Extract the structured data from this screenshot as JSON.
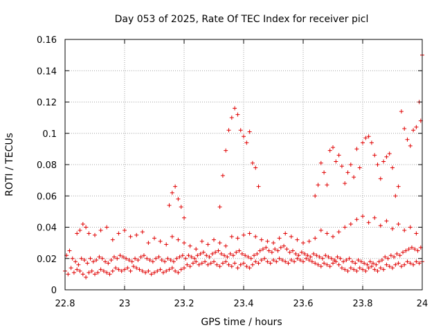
{
  "chart_data": {
    "type": "scatter",
    "title": "Day 053 of 2025, Rate Of TEC Index for receiver picl",
    "xlabel": "GPS time / hours",
    "ylabel": "ROTI / TECUs",
    "xlim": [
      22.8,
      24.0
    ],
    "ylim": [
      0.0,
      0.16
    ],
    "xticks": [
      22.8,
      23.0,
      23.2,
      23.4,
      23.6,
      23.8,
      24.0
    ],
    "xtick_labels": [
      "22.8",
      "23",
      "23.2",
      "23.4",
      "23.6",
      "23.8",
      "24"
    ],
    "yticks": [
      0,
      0.02,
      0.04,
      0.06,
      0.08,
      0.1,
      0.12,
      0.14,
      0.16
    ],
    "ytick_labels": [
      "0",
      "0.02",
      "0.04",
      "0.06",
      "0.08",
      "0.1",
      "0.12",
      "0.14",
      "0.16"
    ],
    "grid": true,
    "marker": "+",
    "series": [
      {
        "name": "ROTI",
        "color": "#e00000",
        "x": [
          22.8,
          22.81,
          22.82,
          22.83,
          22.84,
          22.85,
          22.86,
          22.87,
          22.88,
          22.89,
          22.9,
          22.91,
          22.92,
          22.93,
          22.94,
          22.95,
          22.96,
          22.97,
          22.98,
          22.99,
          23.0,
          23.01,
          23.02,
          23.03,
          23.04,
          23.05,
          23.06,
          23.07,
          23.08,
          23.09,
          23.1,
          23.11,
          23.12,
          23.13,
          23.14,
          23.15,
          23.16,
          23.17,
          23.18,
          23.19,
          23.2,
          23.21,
          23.22,
          23.23,
          23.24,
          23.25,
          23.26,
          23.27,
          23.28,
          23.29,
          23.3,
          23.31,
          23.32,
          23.33,
          23.34,
          23.35,
          23.36,
          23.37,
          23.38,
          23.39,
          23.4,
          23.41,
          23.42,
          23.43,
          23.44,
          23.45,
          23.46,
          23.47,
          23.48,
          23.49,
          23.5,
          23.51,
          23.52,
          23.53,
          23.54,
          23.55,
          23.56,
          23.57,
          23.58,
          23.59,
          23.6,
          23.61,
          23.62,
          23.63,
          23.64,
          23.65,
          23.66,
          23.67,
          23.68,
          23.69,
          23.7,
          23.71,
          23.72,
          23.73,
          23.74,
          23.75,
          23.76,
          23.77,
          23.78,
          23.79,
          23.8,
          23.81,
          23.82,
          23.83,
          23.84,
          23.85,
          23.86,
          23.87,
          23.88,
          23.89,
          23.9,
          23.91,
          23.92,
          23.93,
          23.94,
          23.95,
          23.96,
          23.97,
          23.98,
          23.99,
          24.0,
          22.805,
          22.815,
          22.825,
          22.835,
          22.845,
          22.855,
          22.865,
          22.875,
          22.885,
          22.895,
          22.905,
          22.915,
          22.925,
          22.935,
          22.945,
          22.955,
          22.965,
          22.975,
          22.985,
          22.995,
          23.005,
          23.015,
          23.025,
          23.035,
          23.045,
          23.055,
          23.065,
          23.075,
          23.085,
          23.095,
          23.105,
          23.115,
          23.125,
          23.135,
          23.145,
          23.155,
          23.165,
          23.175,
          23.185,
          23.195,
          23.205,
          23.215,
          23.225,
          23.235,
          23.245,
          23.255,
          23.265,
          23.275,
          23.285,
          23.295,
          23.305,
          23.315,
          23.325,
          23.335,
          23.345,
          23.355,
          23.365,
          23.375,
          23.385,
          23.395,
          23.405,
          23.415,
          23.425,
          23.435,
          23.445,
          23.455,
          23.465,
          23.475,
          23.485,
          23.495,
          23.505,
          23.515,
          23.525,
          23.535,
          23.545,
          23.555,
          23.565,
          23.575,
          23.585,
          23.595,
          23.605,
          23.615,
          23.625,
          23.635,
          23.645,
          23.655,
          23.665,
          23.675,
          23.685,
          23.695,
          23.705,
          23.715,
          23.725,
          23.735,
          23.745,
          23.755,
          23.765,
          23.775,
          23.785,
          23.795,
          23.805,
          23.815,
          23.825,
          23.835,
          23.845,
          23.855,
          23.865,
          23.875,
          23.885,
          23.895,
          23.905,
          23.915,
          23.925,
          23.935,
          23.945,
          23.955,
          23.965,
          23.975,
          23.985,
          23.995,
          22.84,
          22.85,
          22.86,
          22.87,
          22.88,
          22.9,
          22.92,
          22.94,
          22.96,
          22.98,
          23.0,
          23.02,
          23.04,
          23.06,
          23.08,
          23.1,
          23.12,
          23.14,
          23.16,
          23.18,
          23.2,
          23.22,
          23.24,
          23.26,
          23.28,
          23.3,
          23.32,
          23.34,
          23.36,
          23.38,
          23.4,
          23.42,
          23.44,
          23.46,
          23.48,
          23.5,
          23.52,
          23.54,
          23.56,
          23.58,
          23.6,
          23.62,
          23.64,
          23.66,
          23.68,
          23.7,
          23.72,
          23.74,
          23.76,
          23.78,
          23.8,
          23.82,
          23.84,
          23.86,
          23.88,
          23.9,
          23.92,
          23.94,
          23.96,
          23.98,
          23.15,
          23.16,
          23.17,
          23.18,
          23.19,
          23.2,
          23.32,
          23.33,
          23.34,
          23.35,
          23.36,
          23.37,
          23.38,
          23.39,
          23.4,
          23.41,
          23.42,
          23.43,
          23.44,
          23.45,
          23.64,
          23.65,
          23.66,
          23.67,
          23.68,
          23.69,
          23.7,
          23.71,
          23.72,
          23.73,
          23.74,
          23.75,
          23.76,
          23.77,
          23.78,
          23.79,
          23.8,
          23.81,
          23.82,
          23.83,
          23.84,
          23.85,
          23.86,
          23.87,
          23.88,
          23.89,
          23.9,
          23.91,
          23.92,
          23.93,
          23.94,
          23.95,
          23.96,
          23.97,
          23.98,
          23.99,
          23.995,
          24.0
        ],
        "y": [
          0.012,
          0.01,
          0.014,
          0.011,
          0.013,
          0.012,
          0.01,
          0.008,
          0.011,
          0.012,
          0.01,
          0.011,
          0.013,
          0.012,
          0.011,
          0.01,
          0.012,
          0.014,
          0.013,
          0.012,
          0.013,
          0.014,
          0.012,
          0.015,
          0.014,
          0.013,
          0.012,
          0.011,
          0.012,
          0.01,
          0.011,
          0.012,
          0.013,
          0.011,
          0.012,
          0.013,
          0.014,
          0.012,
          0.011,
          0.013,
          0.014,
          0.016,
          0.015,
          0.017,
          0.018,
          0.016,
          0.017,
          0.018,
          0.016,
          0.017,
          0.018,
          0.016,
          0.015,
          0.017,
          0.018,
          0.016,
          0.015,
          0.017,
          0.014,
          0.016,
          0.017,
          0.015,
          0.014,
          0.016,
          0.018,
          0.017,
          0.019,
          0.02,
          0.018,
          0.017,
          0.019,
          0.018,
          0.02,
          0.019,
          0.018,
          0.017,
          0.019,
          0.018,
          0.02,
          0.019,
          0.018,
          0.02,
          0.019,
          0.018,
          0.017,
          0.016,
          0.015,
          0.017,
          0.016,
          0.015,
          0.017,
          0.018,
          0.016,
          0.014,
          0.013,
          0.012,
          0.014,
          0.013,
          0.012,
          0.014,
          0.013,
          0.012,
          0.014,
          0.015,
          0.013,
          0.012,
          0.014,
          0.013,
          0.016,
          0.015,
          0.014,
          0.016,
          0.017,
          0.015,
          0.016,
          0.018,
          0.017,
          0.016,
          0.018,
          0.017,
          0.018,
          0.022,
          0.025,
          0.02,
          0.018,
          0.016,
          0.02,
          0.019,
          0.017,
          0.02,
          0.018,
          0.019,
          0.021,
          0.02,
          0.018,
          0.017,
          0.019,
          0.021,
          0.02,
          0.022,
          0.021,
          0.02,
          0.019,
          0.018,
          0.02,
          0.019,
          0.021,
          0.022,
          0.02,
          0.019,
          0.018,
          0.02,
          0.021,
          0.019,
          0.018,
          0.02,
          0.019,
          0.018,
          0.02,
          0.021,
          0.022,
          0.02,
          0.022,
          0.021,
          0.02,
          0.022,
          0.023,
          0.024,
          0.022,
          0.021,
          0.023,
          0.024,
          0.025,
          0.023,
          0.022,
          0.021,
          0.023,
          0.022,
          0.024,
          0.025,
          0.023,
          0.022,
          0.021,
          0.02,
          0.022,
          0.023,
          0.025,
          0.026,
          0.027,
          0.025,
          0.024,
          0.026,
          0.025,
          0.027,
          0.028,
          0.026,
          0.024,
          0.025,
          0.023,
          0.022,
          0.024,
          0.023,
          0.022,
          0.021,
          0.023,
          0.022,
          0.021,
          0.02,
          0.022,
          0.021,
          0.02,
          0.019,
          0.021,
          0.02,
          0.018,
          0.019,
          0.02,
          0.018,
          0.017,
          0.019,
          0.018,
          0.017,
          0.016,
          0.018,
          0.017,
          0.016,
          0.018,
          0.019,
          0.021,
          0.02,
          0.022,
          0.021,
          0.023,
          0.022,
          0.024,
          0.025,
          0.026,
          0.027,
          0.026,
          0.025,
          0.027,
          0.036,
          0.038,
          0.042,
          0.04,
          0.036,
          0.035,
          0.038,
          0.04,
          0.032,
          0.036,
          0.038,
          0.034,
          0.035,
          0.037,
          0.03,
          0.033,
          0.031,
          0.029,
          0.034,
          0.032,
          0.03,
          0.028,
          0.026,
          0.031,
          0.029,
          0.032,
          0.03,
          0.028,
          0.034,
          0.033,
          0.035,
          0.036,
          0.034,
          0.032,
          0.031,
          0.03,
          0.033,
          0.036,
          0.034,
          0.032,
          0.03,
          0.031,
          0.033,
          0.038,
          0.036,
          0.034,
          0.037,
          0.04,
          0.042,
          0.045,
          0.047,
          0.043,
          0.046,
          0.041,
          0.044,
          0.039,
          0.042,
          0.038,
          0.04,
          0.036,
          0.054,
          0.062,
          0.066,
          0.058,
          0.053,
          0.046,
          0.053,
          0.073,
          0.089,
          0.102,
          0.11,
          0.116,
          0.112,
          0.102,
          0.098,
          0.094,
          0.101,
          0.081,
          0.078,
          0.066,
          0.06,
          0.067,
          0.081,
          0.075,
          0.067,
          0.089,
          0.091,
          0.082,
          0.086,
          0.079,
          0.068,
          0.075,
          0.08,
          0.072,
          0.09,
          0.078,
          0.094,
          0.097,
          0.098,
          0.094,
          0.086,
          0.08,
          0.071,
          0.082,
          0.085,
          0.087,
          0.078,
          0.06,
          0.066,
          0.114,
          0.103,
          0.096,
          0.092,
          0.102,
          0.104,
          0.12,
          0.108,
          0.15
        ]
      }
    ]
  }
}
